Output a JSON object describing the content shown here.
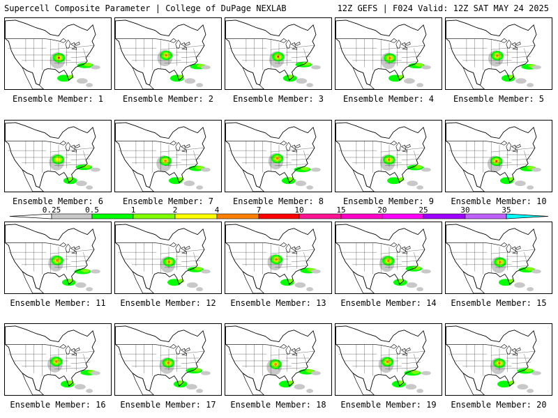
{
  "header": {
    "left_title": "Supercell Composite Parameter | College of DuPage NEXLAB",
    "right_title": "12Z GEFS | F024 Valid: 12Z SAT MAY 24 2025"
  },
  "members": [
    {
      "label": "Ensemble Member: 1",
      "max": 15
    },
    {
      "label": "Ensemble Member: 2",
      "max": 7
    },
    {
      "label": "Ensemble Member: 3",
      "max": 15
    },
    {
      "label": "Ensemble Member: 4",
      "max": 10
    },
    {
      "label": "Ensemble Member: 5",
      "max": 10
    },
    {
      "label": "Ensemble Member: 6",
      "max": 4
    },
    {
      "label": "Ensemble Member: 7",
      "max": 7
    },
    {
      "label": "Ensemble Member: 8",
      "max": 10
    },
    {
      "label": "Ensemble Member: 9",
      "max": 10
    },
    {
      "label": "Ensemble Member: 10",
      "max": 15
    },
    {
      "label": "Ensemble Member: 11",
      "max": 10
    },
    {
      "label": "Ensemble Member: 12",
      "max": 10
    },
    {
      "label": "Ensemble Member: 13",
      "max": 10
    },
    {
      "label": "Ensemble Member: 14",
      "max": 7
    },
    {
      "label": "Ensemble Member: 15",
      "max": 10
    },
    {
      "label": "Ensemble Member: 16",
      "max": 10
    },
    {
      "label": "Ensemble Member: 17",
      "max": 10
    },
    {
      "label": "Ensemble Member: 18",
      "max": 10
    },
    {
      "label": "Ensemble Member: 19",
      "max": 7
    },
    {
      "label": "Ensemble Member: 20",
      "max": 10
    }
  ],
  "colorbar": {
    "ticks": [
      "0.25",
      "0.5",
      "1",
      "2",
      "4",
      "7",
      "10",
      "15",
      "20",
      "25",
      "30",
      "35"
    ],
    "colors": [
      "#c8c8c8",
      "#00ff00",
      "#80ff00",
      "#ffff00",
      "#ff8000",
      "#ff0000",
      "#ff1493",
      "#ff00c8",
      "#ff00ff",
      "#a000ff",
      "#c060ff",
      "#00ffff"
    ]
  },
  "colors": {
    "under": "#ffffff",
    "lev1": "#c8c8c8",
    "lev2": "#00ff00",
    "lev3": "#80ff00",
    "lev4": "#ffff00",
    "lev5": "#ff8000",
    "lev6": "#ff0000"
  }
}
